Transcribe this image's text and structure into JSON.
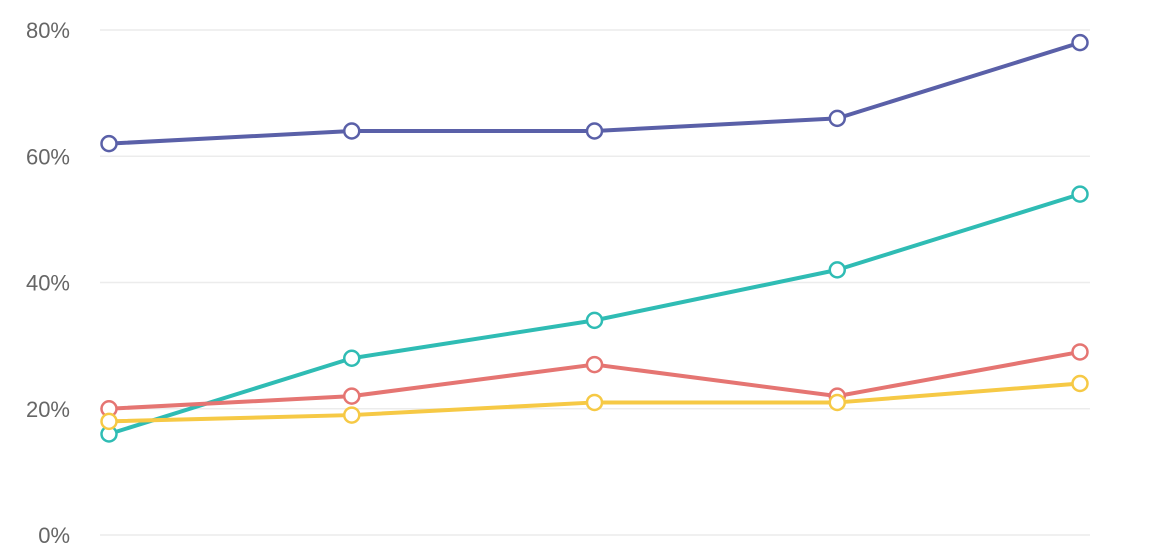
{
  "chart_data": {
    "type": "line",
    "title": "",
    "xlabel": "",
    "ylabel": "",
    "ylim": [
      0,
      80
    ],
    "y_ticks": [
      0,
      20,
      40,
      60,
      80
    ],
    "y_tick_labels": [
      "0%",
      "20%",
      "40%",
      "60%",
      "80%"
    ],
    "x": [
      1,
      2,
      3,
      4,
      5
    ],
    "grid": "horizontal",
    "legend": "none",
    "series": [
      {
        "color": "#5a60a8",
        "values": [
          62,
          64,
          64,
          66,
          78
        ]
      },
      {
        "color": "#2fbcb4",
        "values": [
          16,
          28,
          34,
          42,
          54
        ]
      },
      {
        "color": "#e57572",
        "values": [
          20,
          22,
          27,
          22,
          29
        ]
      },
      {
        "color": "#f6c945",
        "values": [
          18,
          19,
          21,
          21,
          24
        ]
      }
    ]
  }
}
